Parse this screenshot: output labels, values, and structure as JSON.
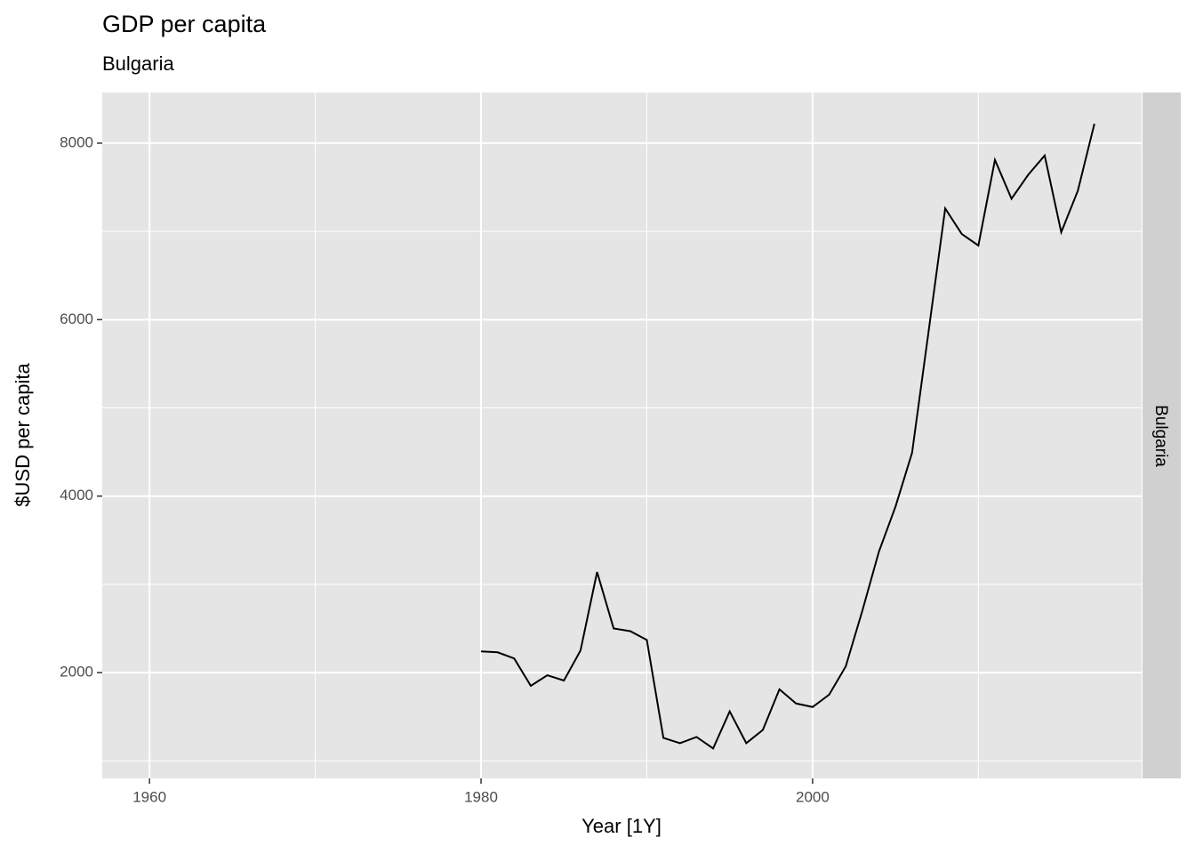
{
  "chart_data": {
    "type": "line",
    "title": "GDP per capita",
    "subtitle": "Bulgaria",
    "x_label": "Year [1Y]",
    "y_label": "$USD per capita",
    "facet_label": "Bulgaria",
    "x": [
      1980,
      1981,
      1982,
      1983,
      1984,
      1985,
      1986,
      1987,
      1988,
      1989,
      1990,
      1991,
      1992,
      1993,
      1994,
      1995,
      1996,
      1997,
      1998,
      1999,
      2000,
      2001,
      2002,
      2003,
      2004,
      2005,
      2006,
      2007,
      2008,
      2009,
      2010,
      2011,
      2012,
      2013,
      2014,
      2015,
      2016,
      2017
    ],
    "series": [
      {
        "name": "Bulgaria",
        "color": "#000000",
        "values": [
          2240,
          2230,
          2160,
          1850,
          1970,
          1910,
          2250,
          3140,
          2500,
          2470,
          2370,
          1260,
          1200,
          1270,
          1140,
          1560,
          1200,
          1350,
          1810,
          1650,
          1610,
          1750,
          2070,
          2700,
          3370,
          3880,
          4490,
          5870,
          7260,
          6970,
          6840,
          7810,
          7370,
          7640,
          7860,
          6990,
          7460,
          8220
        ]
      }
    ],
    "xlim": [
      1957.15,
      2019.85
    ],
    "xticks": [
      1960,
      1980,
      2000
    ],
    "x_minor_ticks": [
      1970,
      1990,
      2010
    ],
    "ylim": [
      801,
      8574
    ],
    "yticks": [
      2000,
      4000,
      6000,
      8000
    ],
    "y_minor_ticks": [
      1000,
      3000,
      5000,
      7000
    ],
    "grid": true
  }
}
